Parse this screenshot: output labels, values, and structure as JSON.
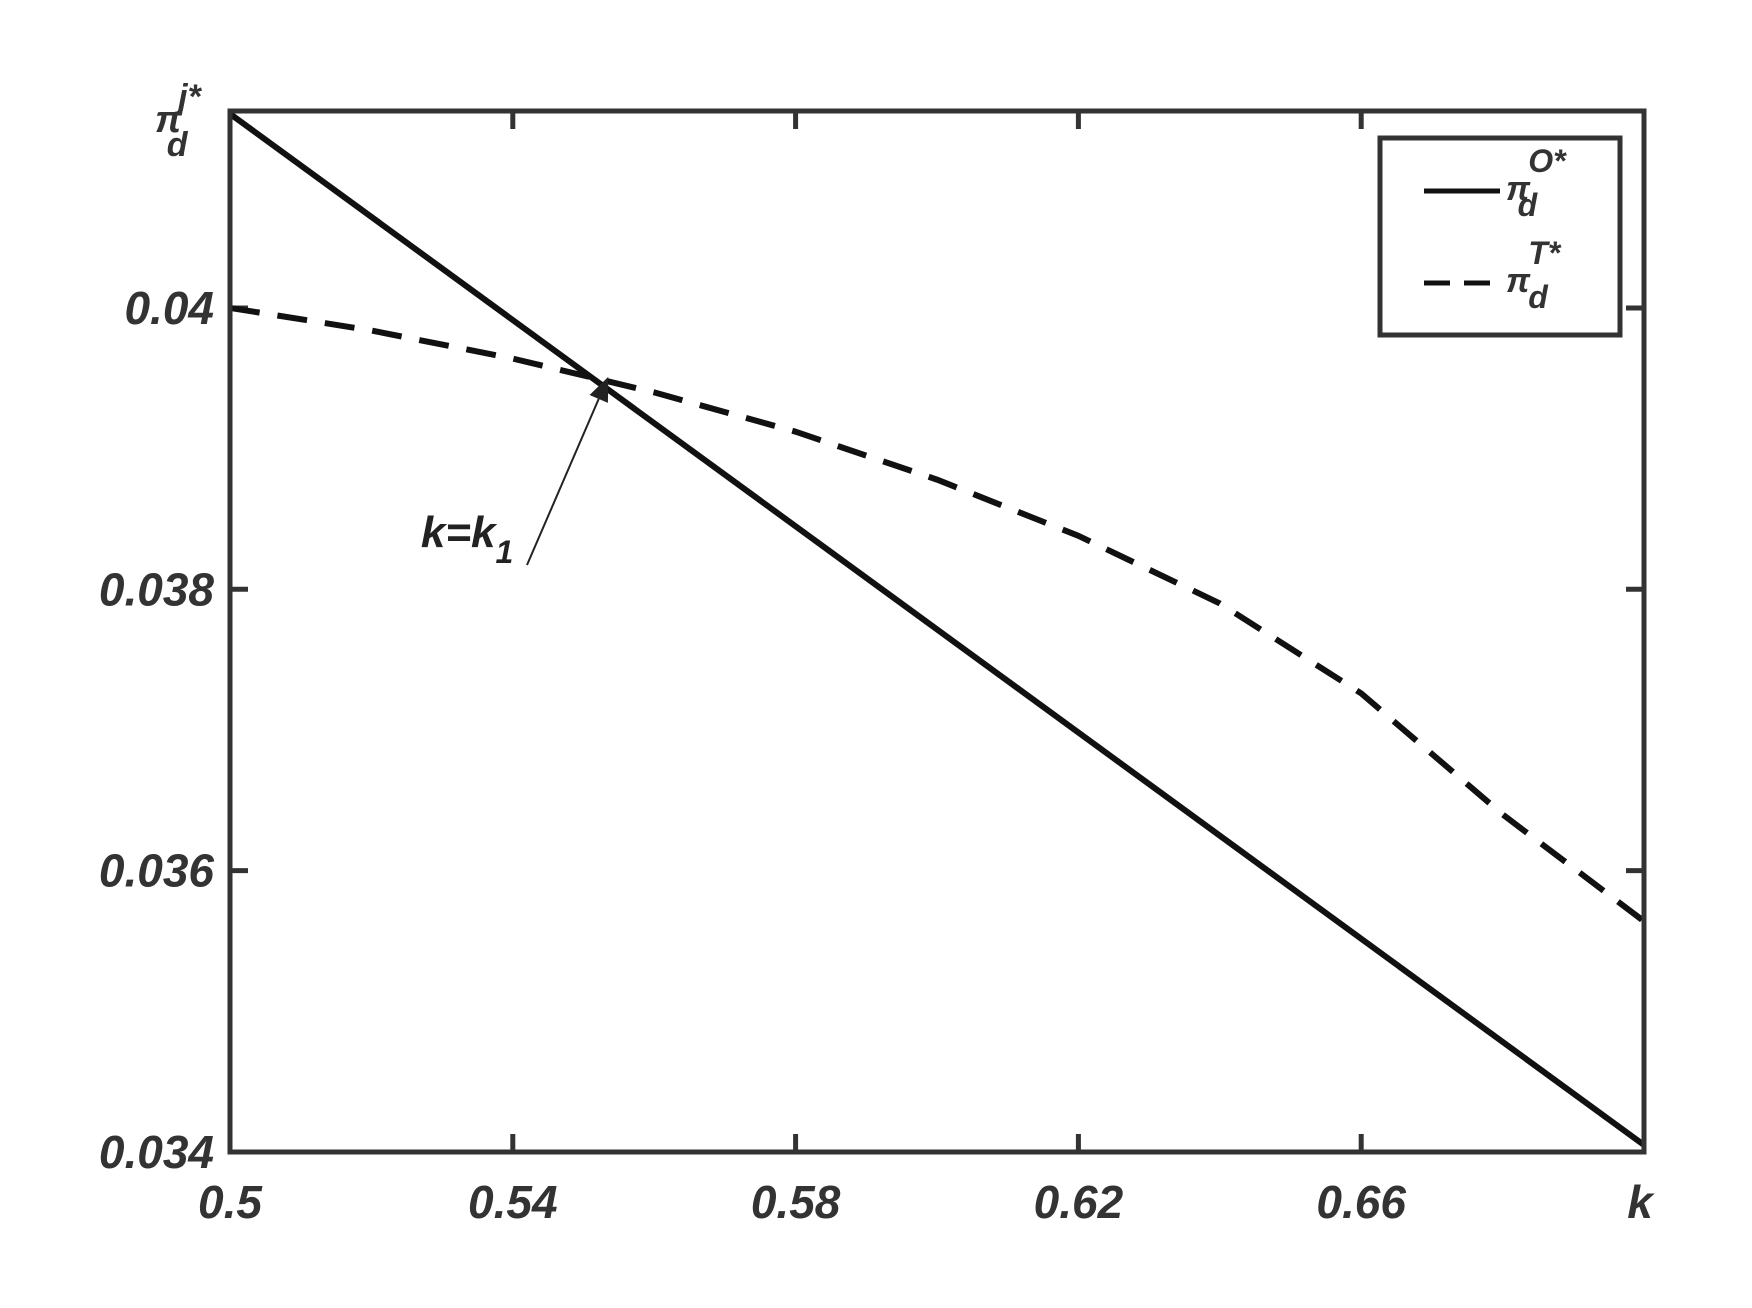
{
  "chart_data": {
    "type": "line",
    "xlabel": "k",
    "ylabel": {
      "base": "π",
      "sub": "d",
      "sup": "j*"
    },
    "xlim": [
      0.5,
      0.7
    ],
    "ylim": [
      0.034,
      0.0414
    ],
    "xticks": [
      0.5,
      0.54,
      0.58,
      0.62,
      0.66
    ],
    "xtick_labels": [
      "0.5",
      "0.54",
      "0.58",
      "0.62",
      "0.66"
    ],
    "yticks": [
      0.034,
      0.036,
      0.038,
      0.04
    ],
    "ytick_labels": [
      "0.034",
      "0.036",
      "0.038",
      "0.04"
    ],
    "grid": false,
    "legend_position": "top-right",
    "series": [
      {
        "name": {
          "base": "π",
          "sub": "d",
          "sup": "O*"
        },
        "style": "solid",
        "color": "#111111",
        "x": [
          0.5,
          0.7
        ],
        "y": [
          0.04138,
          0.03405
        ]
      },
      {
        "name": {
          "base": "π",
          "sub": "d",
          "sup": "T*"
        },
        "style": "dashed",
        "color": "#111111",
        "x": [
          0.5,
          0.52,
          0.54,
          0.56,
          0.58,
          0.6,
          0.62,
          0.64,
          0.66,
          0.68,
          0.7
        ],
        "y": [
          0.04,
          0.03984,
          0.03964,
          0.0394,
          0.03912,
          0.03878,
          0.03838,
          0.0379,
          0.03726,
          0.0364,
          0.03564
        ]
      }
    ],
    "annotation": {
      "text": {
        "base": "k=k",
        "sub": "1"
      },
      "target": {
        "x": 0.5535,
        "y": 0.03951
      },
      "text_at": {
        "x": 0.527,
        "y": 0.0383
      }
    }
  }
}
